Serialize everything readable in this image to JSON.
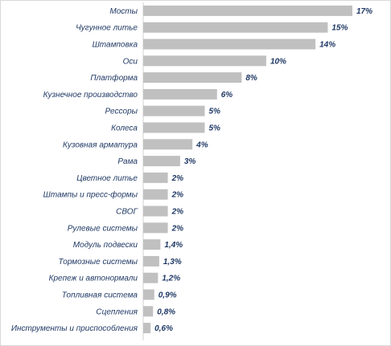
{
  "chart_data": {
    "type": "bar",
    "orientation": "horizontal",
    "categories": [
      "Мосты",
      "Чугунное литье",
      "Штамповка",
      "Оси",
      "Платформа",
      "Кузнечное производство",
      "Рессоры",
      "Колеса",
      "Кузовная арматура",
      "Рама",
      "Цветное литье",
      "Штампы и пресс-формы",
      "СВОГ",
      "Рулевые системы",
      "Модуль подвески",
      "Тормозные системы",
      "Крепеж и автонормали",
      "Топливная система",
      "Сцепления",
      "Инструменты и приспособления"
    ],
    "values": [
      17,
      15,
      14,
      10,
      8,
      6,
      5,
      5,
      4,
      3,
      2,
      2,
      2,
      2,
      1.4,
      1.3,
      1.2,
      0.9,
      0.8,
      0.6
    ],
    "value_labels": [
      "17%",
      "15%",
      "14%",
      "10%",
      "8%",
      "6%",
      "5%",
      "5%",
      "4%",
      "3%",
      "2%",
      "2%",
      "2%",
      "2%",
      "1,4%",
      "1,3%",
      "1,2%",
      "0,9%",
      "0,8%",
      "0,6%"
    ],
    "xlim": [
      0,
      17
    ],
    "grid": false,
    "legend": "none",
    "bar_color": "#c0c0c0",
    "text_color": "#1f3864"
  }
}
